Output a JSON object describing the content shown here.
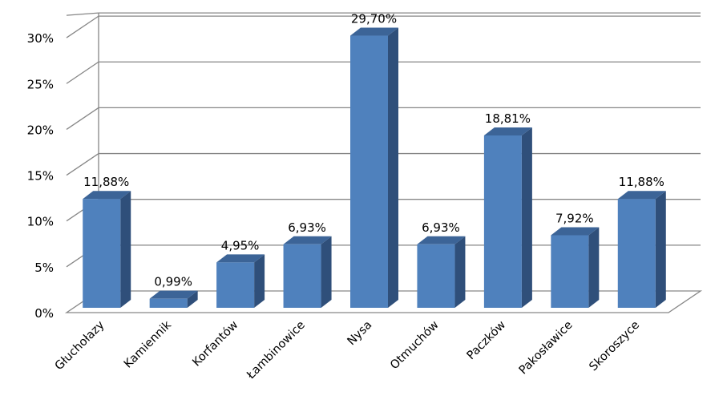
{
  "chart_data": {
    "type": "bar",
    "title": "",
    "xlabel": "",
    "ylabel": "",
    "categories": [
      "Głuchołazy",
      "Kamiennik",
      "Korfantów",
      "Łambinowice",
      "Nysa",
      "Otmuchów",
      "Paczków",
      "Pakosławice",
      "Skoroszyce"
    ],
    "values": [
      11.88,
      0.99,
      4.95,
      6.93,
      29.7,
      6.93,
      18.81,
      7.92,
      11.88
    ],
    "value_labels": [
      "11,88%",
      "0,99%",
      "4,95%",
      "6,93%",
      "29,70%",
      "6,93%",
      "18,81%",
      "7,92%",
      "11,88%"
    ],
    "yticks": [
      0,
      5,
      10,
      15,
      20,
      25,
      30
    ],
    "ytick_labels": [
      "0%",
      "5%",
      "10%",
      "15%",
      "20%",
      "25%",
      "30%"
    ],
    "ylim": [
      0,
      30
    ],
    "grid": true,
    "legend": "none",
    "style": "3d-column",
    "colors": {
      "bar_front": "#4f81bd",
      "bar_side": "#2f4f7a",
      "bar_top": "#3c6497",
      "grid": "#868686"
    }
  }
}
